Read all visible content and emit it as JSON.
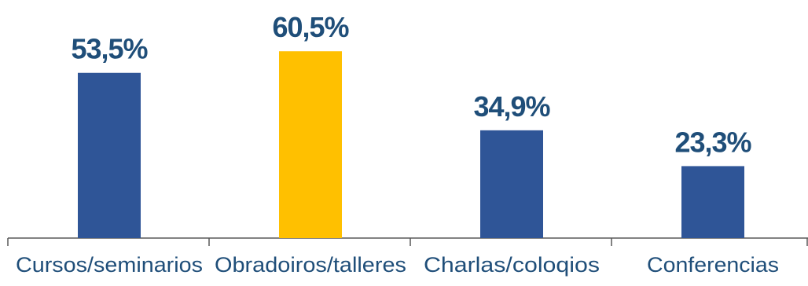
{
  "chart_data": {
    "type": "bar",
    "categories": [
      "Cursos/seminarios",
      "Obradoiros/talleres",
      "Charlas/coloqios",
      "Conferencias"
    ],
    "values": [
      53.5,
      60.5,
      34.9,
      23.3
    ],
    "value_labels": [
      "53,5%",
      "60,5%",
      "34,9%",
      "23,3%"
    ],
    "bar_colors": [
      "#2f5597",
      "#ffc000",
      "#2f5597",
      "#2f5597"
    ],
    "label_color": "#1f4e79",
    "category_color": "#1f4e79",
    "axis_color": "#595959",
    "ylim": [
      0,
      100
    ],
    "title": "",
    "xlabel": "",
    "ylabel": "",
    "grid": false,
    "legend": "none"
  }
}
